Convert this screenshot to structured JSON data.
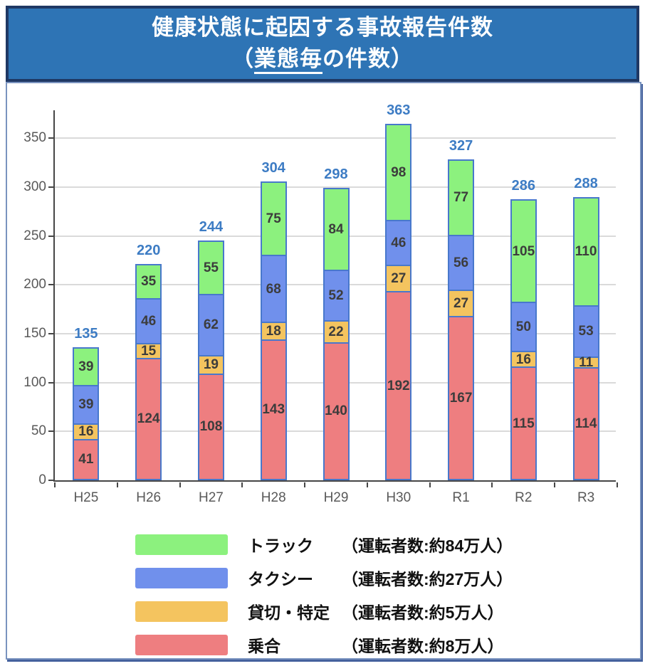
{
  "title": {
    "line1": "健康状態に起因する事故報告件数",
    "line2_pre": "（",
    "line2_underlined": "業態毎",
    "line2_post": "の件数）"
  },
  "colors": {
    "title_bg": "#2E74B5",
    "title_border": "#1F3864",
    "card_border": "#44619D",
    "bar_border": "#4878CC",
    "total_label": "#3D7CC4",
    "axis": "#464646",
    "axis_label": "#595959",
    "gridline": "#DADADA",
    "segment_label": "#3C3C3C"
  },
  "chart_data": {
    "type": "bar",
    "stacked": true,
    "title": "健康状態に起因する事故報告件数（業態毎の件数）",
    "xlabel": "",
    "ylabel": "",
    "categories": [
      "H25",
      "H26",
      "H27",
      "H28",
      "H29",
      "H30",
      "R1",
      "R2",
      "R3"
    ],
    "series": [
      {
        "name": "乗合",
        "color": "#EE7E80",
        "values": [
          41,
          124,
          108,
          143,
          140,
          192,
          167,
          115,
          114
        ]
      },
      {
        "name": "貸切・特定",
        "color": "#F4C45F",
        "values": [
          16,
          15,
          19,
          18,
          22,
          27,
          27,
          16,
          11
        ]
      },
      {
        "name": "タクシー",
        "color": "#7090EC",
        "values": [
          39,
          46,
          62,
          68,
          52,
          46,
          56,
          50,
          53
        ]
      },
      {
        "name": "トラック",
        "color": "#8CF17E",
        "values": [
          39,
          35,
          55,
          75,
          84,
          98,
          77,
          105,
          110
        ]
      }
    ],
    "totals": [
      135,
      220,
      244,
      304,
      298,
      363,
      327,
      286,
      288
    ],
    "ylim": [
      0,
      380
    ],
    "yticks": [
      0,
      50,
      100,
      150,
      200,
      250,
      300,
      350
    ],
    "grid": true,
    "legend_position": "bottom"
  },
  "legend": {
    "items": [
      {
        "name": "トラック",
        "detail": "（運転者数:約84万人）",
        "color": "#8CF17E"
      },
      {
        "name": "タクシー",
        "detail": "（運転者数:約27万人）",
        "color": "#7090EC"
      },
      {
        "name": "貸切・特定",
        "detail": "（運転者数:約5万人）",
        "color": "#F4C45F"
      },
      {
        "name": "乗合",
        "detail": "（運転者数:約8万人）",
        "color": "#EE7E80"
      }
    ]
  }
}
